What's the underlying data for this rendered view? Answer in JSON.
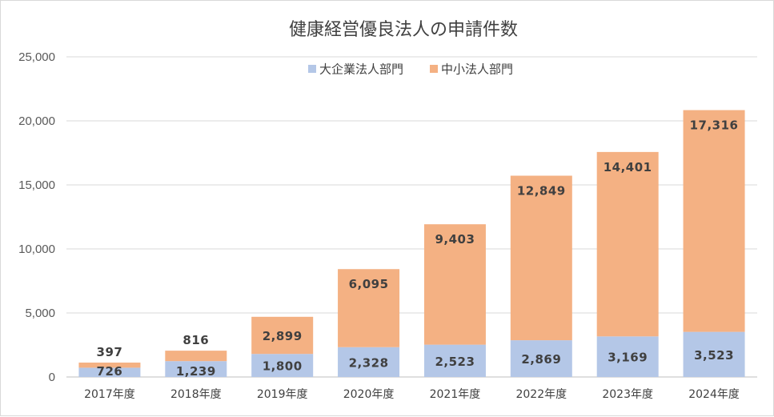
{
  "chart_data": {
    "type": "bar",
    "stacked": true,
    "title": "健康経営優良法人の申請件数",
    "categories": [
      "2017年度",
      "2018年度",
      "2019年度",
      "2020年度",
      "2021年度",
      "2022年度",
      "2023年度",
      "2024年度"
    ],
    "series": [
      {
        "name": "大企業法人部門",
        "color": "#b4c7e7",
        "values": [
          726,
          1239,
          1800,
          2328,
          2523,
          2869,
          3169,
          3523
        ],
        "labels": [
          "726",
          "1,239",
          "1,800",
          "2,328",
          "2,523",
          "2,869",
          "3,169",
          "3,523"
        ]
      },
      {
        "name": "中小法人部門",
        "color": "#f4b183",
        "values": [
          397,
          816,
          2899,
          6095,
          9403,
          12849,
          14401,
          17316
        ],
        "labels": [
          "397",
          "816",
          "2,899",
          "6,095",
          "9,403",
          "12,849",
          "14,401",
          "17,316"
        ]
      }
    ],
    "ylim": [
      0,
      25000
    ],
    "yticks": [
      0,
      5000,
      10000,
      15000,
      20000,
      25000
    ],
    "ytick_labels": [
      "0",
      "5,000",
      "10,000",
      "15,000",
      "20,000",
      "25,000"
    ],
    "xlabel": "",
    "ylabel": "",
    "grid": true,
    "legend_position": "top"
  }
}
